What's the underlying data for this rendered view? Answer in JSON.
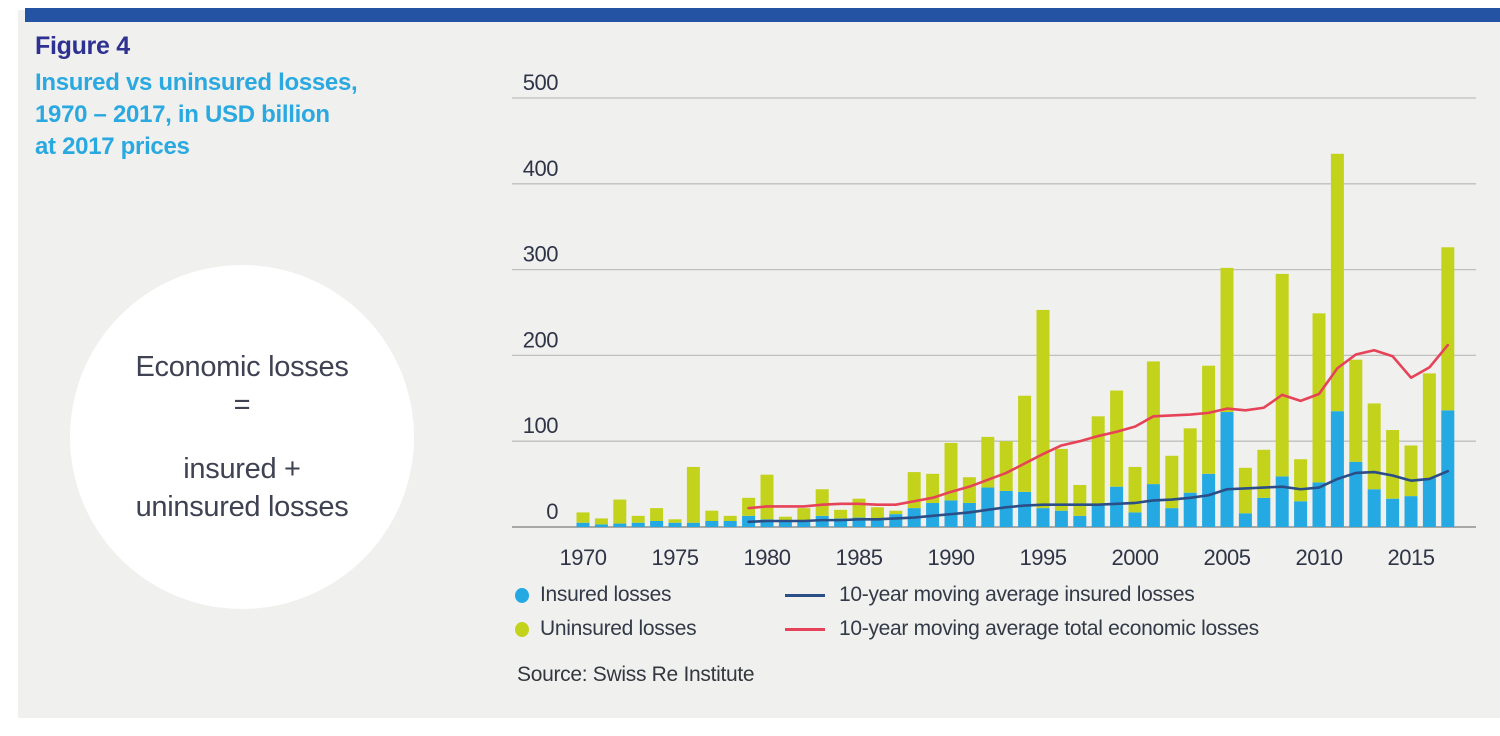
{
  "page": {
    "figure_label": "Figure 4",
    "title": "Insured vs uninsured losses,\n1970 – 2017, in USD billion\nat 2017 prices",
    "source": "Source: Swiss Re Institute"
  },
  "annotation_circle": {
    "line1": "Economic losses",
    "line2": "=",
    "line3": "insured +",
    "line4": "uninsured losses"
  },
  "legend": {
    "items": [
      {
        "swatch": "dot",
        "color": "#24a9e2",
        "label": "Insured losses"
      },
      {
        "swatch": "dot",
        "color": "#c3d31b",
        "label": "Uninsured losses"
      },
      {
        "swatch": "line",
        "color": "#2b4e87",
        "label": "10-year moving average insured losses"
      },
      {
        "swatch": "line",
        "color": "#e64358",
        "label": "10-year moving average total economic losses"
      }
    ]
  },
  "colors": {
    "background_panel": "#f0f0ee",
    "top_stripe": "#2453a4",
    "figure_label_text": "#2e3192",
    "title_text": "#2aa9e1",
    "insured_bar": "#24a9e2",
    "uninsured_bar": "#c3d31b",
    "ma_insured_line": "#2b4e87",
    "ma_total_line": "#e64358",
    "gridline": "#bfc0bc",
    "axis_line": "#8f918f",
    "tick_text": "#2f3547"
  },
  "chart_data": {
    "type": "bar",
    "subtype": "stacked-bars-with-moving-average-lines",
    "title": "Insured vs uninsured losses, 1970 – 2017, in USD billion at 2017 prices",
    "xlabel": "",
    "ylabel": "USD billion",
    "ylim": [
      0,
      500
    ],
    "yticks": [
      0,
      100,
      200,
      300,
      400,
      500
    ],
    "xticks": [
      1970,
      1975,
      1980,
      1985,
      1990,
      1995,
      2000,
      2005,
      2010,
      2015
    ],
    "grid": "horizontal",
    "legend_position": "bottom",
    "years": [
      1970,
      1971,
      1972,
      1973,
      1974,
      1975,
      1976,
      1977,
      1978,
      1979,
      1980,
      1981,
      1982,
      1983,
      1984,
      1985,
      1986,
      1987,
      1988,
      1989,
      1990,
      1991,
      1992,
      1993,
      1994,
      1995,
      1996,
      1997,
      1998,
      1999,
      2000,
      2001,
      2002,
      2003,
      2004,
      2005,
      2006,
      2007,
      2008,
      2009,
      2010,
      2011,
      2012,
      2013,
      2014,
      2015,
      2016,
      2017
    ],
    "series": [
      {
        "name": "Insured losses",
        "type": "bar",
        "stack": "losses",
        "color": "#24a9e2",
        "values": [
          5,
          3,
          4,
          5,
          7,
          5,
          5,
          7,
          7,
          13,
          9,
          7,
          8,
          13,
          10,
          11,
          8,
          15,
          22,
          28,
          31,
          28,
          46,
          42,
          41,
          22,
          19,
          13,
          26,
          47,
          17,
          50,
          22,
          40,
          62,
          134,
          16,
          34,
          59,
          30,
          52,
          135,
          76,
          44,
          33,
          36,
          57,
          136
        ]
      },
      {
        "name": "Uninsured losses",
        "type": "bar",
        "stack": "losses",
        "color": "#c3d31b",
        "values": [
          12,
          7,
          28,
          8,
          15,
          4,
          65,
          12,
          6,
          21,
          52,
          5,
          14,
          31,
          10,
          22,
          15,
          4,
          42,
          34,
          67,
          30,
          59,
          58,
          112,
          231,
          72,
          36,
          103,
          112,
          53,
          143,
          61,
          75,
          126,
          168,
          53,
          56,
          236,
          49,
          197,
          300,
          119,
          100,
          80,
          59,
          122,
          190
        ]
      },
      {
        "name": "10-year moving average insured losses",
        "type": "line",
        "color": "#2b4e87",
        "start_year": 1979,
        "values": [
          6,
          7,
          7,
          7,
          8,
          8,
          9,
          9,
          10,
          11,
          13,
          15,
          17,
          20,
          23,
          25,
          26,
          26,
          26,
          26,
          27,
          28,
          31,
          32,
          34,
          37,
          44,
          45,
          46,
          47,
          44,
          46,
          56,
          63,
          64,
          60,
          54,
          56,
          65
        ]
      },
      {
        "name": "10-year moving average total economic losses",
        "type": "line",
        "color": "#e64358",
        "start_year": 1979,
        "values": [
          22,
          24,
          24,
          24,
          26,
          27,
          27,
          26,
          26,
          30,
          34,
          41,
          47,
          55,
          63,
          74,
          85,
          95,
          100,
          106,
          111,
          117,
          129,
          130,
          131,
          133,
          138,
          136,
          139,
          154,
          147,
          155,
          185,
          201,
          206,
          199,
          174,
          186,
          212
        ]
      }
    ]
  }
}
